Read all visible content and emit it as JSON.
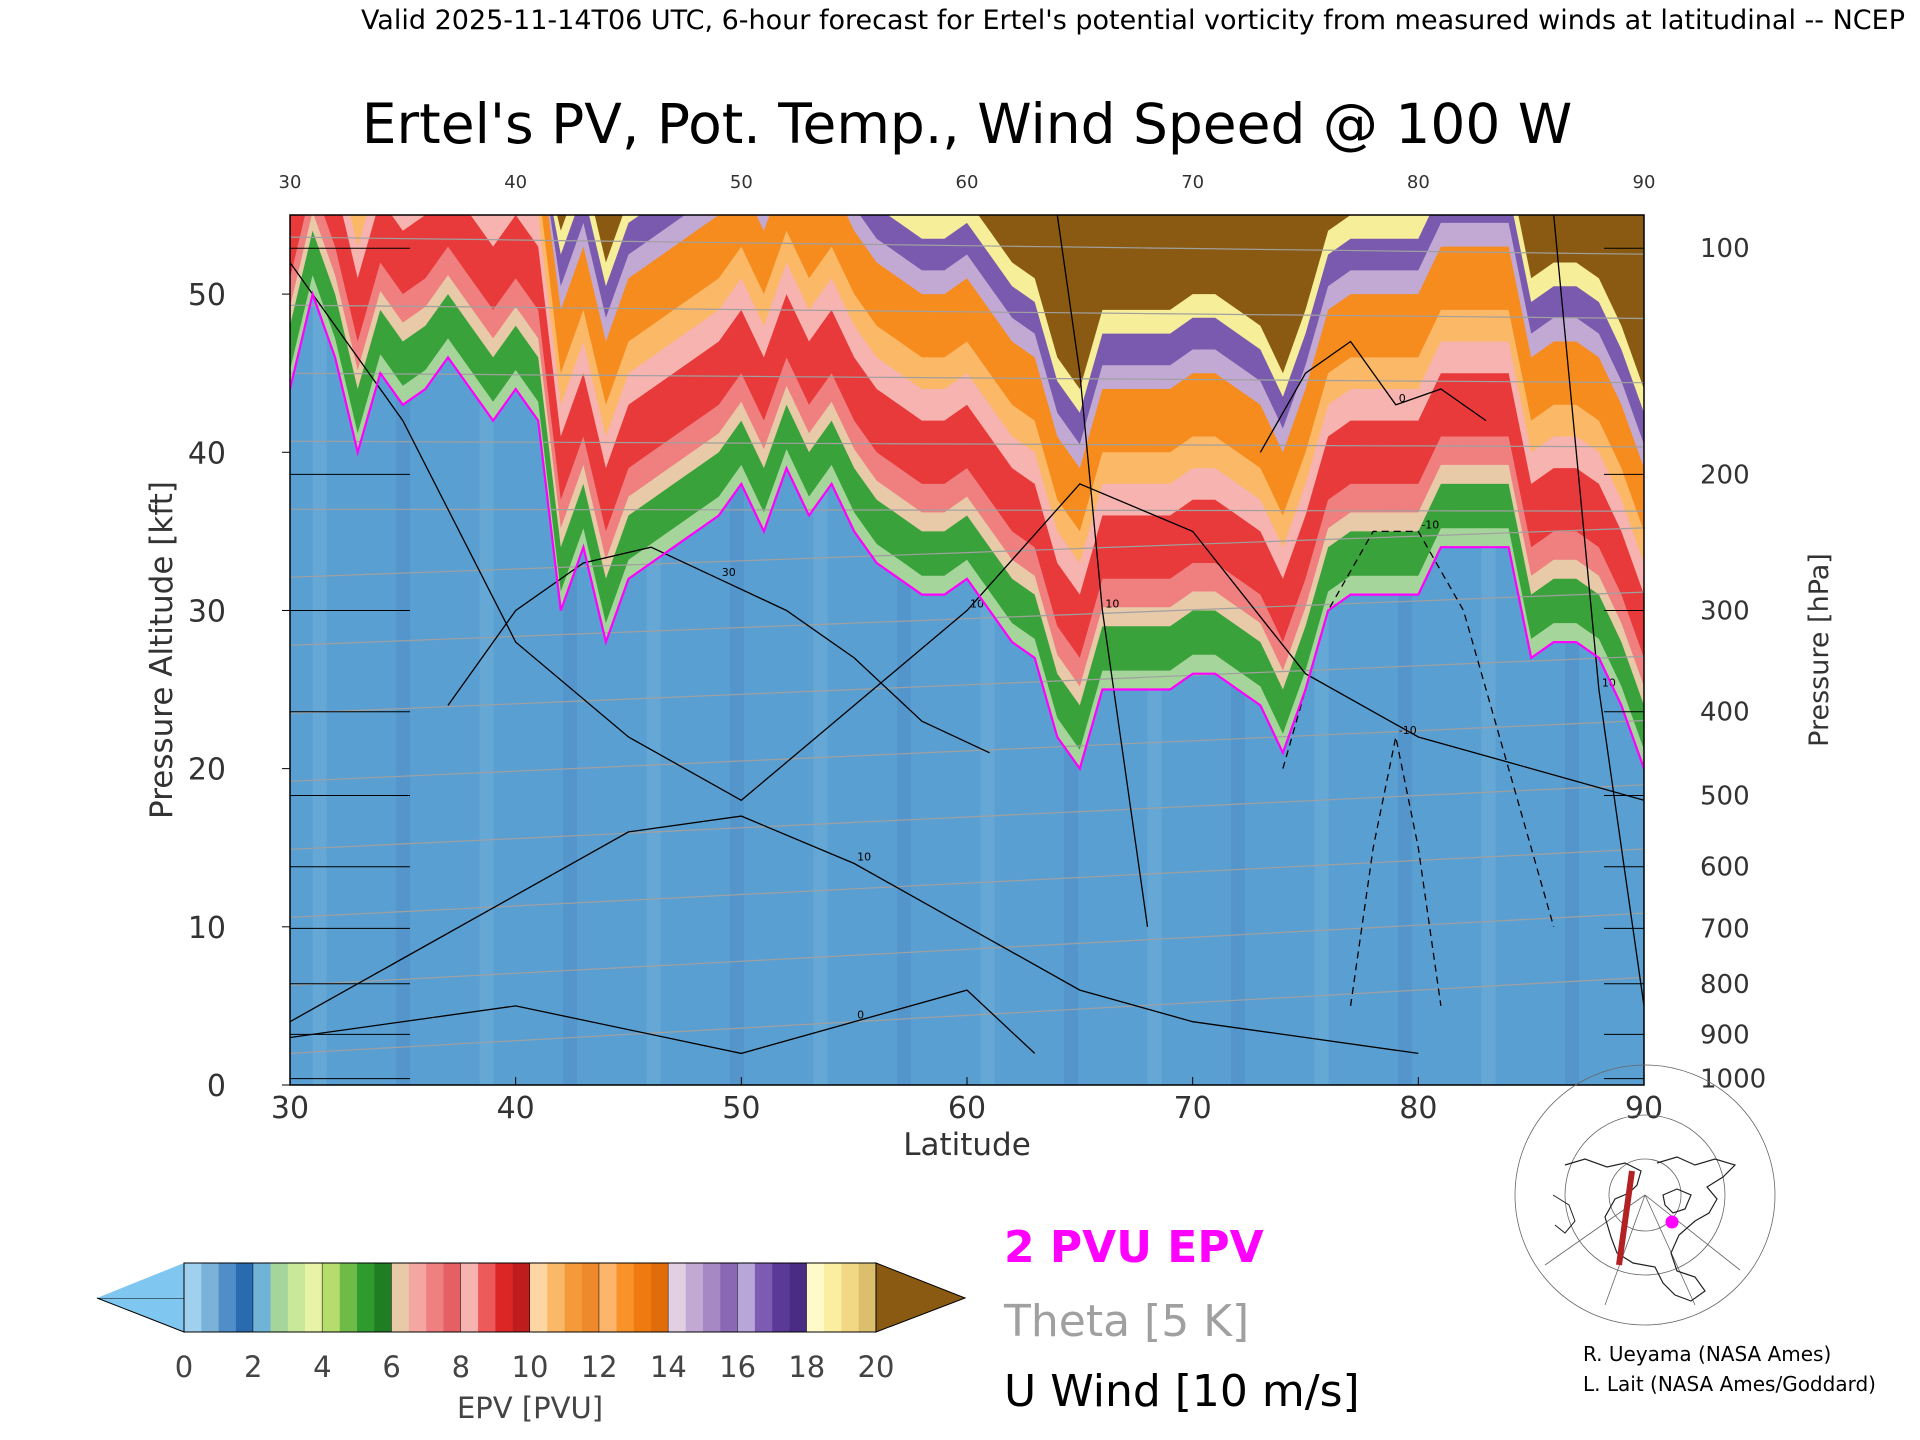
{
  "header": {
    "valid_line": "Valid 2025-11-14T06 UTC, 6-hour forecast for Ertel's potential vorticity from measured winds at latitudinal -- NCEP"
  },
  "chart_data": {
    "type": "heatmap",
    "title": "Ertel's PV, Pot. Temp., Wind Speed @ 100 W",
    "xlabel": "Latitude",
    "ylabel": "Pressure Altitude [kft]",
    "ylabel_right": "Pressure [hPa]",
    "xlim": [
      30,
      90
    ],
    "ylim": [
      0,
      55
    ],
    "x_ticks": [
      30,
      40,
      50,
      60,
      70,
      80,
      90
    ],
    "x_tick_labels": [
      "30",
      "40",
      "50",
      "60",
      "70",
      "80",
      "90"
    ],
    "x_top_tick_labels": [
      "30",
      "40",
      "50",
      "60",
      "70",
      "80",
      "90"
    ],
    "y_ticks": [
      0,
      10,
      20,
      30,
      40,
      50
    ],
    "y_tick_labels": [
      "0",
      "10",
      "20",
      "30",
      "40",
      "50"
    ],
    "pressure_ticks": [
      {
        "label": "100",
        "kft": 52.9
      },
      {
        "label": "200",
        "kft": 38.6
      },
      {
        "label": "300",
        "kft": 30.0
      },
      {
        "label": "400",
        "kft": 23.6
      },
      {
        "label": "500",
        "kft": 18.3
      },
      {
        "label": "600",
        "kft": 13.8
      },
      {
        "label": "700",
        "kft": 9.9
      },
      {
        "label": "800",
        "kft": 6.4
      },
      {
        "label": "900",
        "kft": 3.2
      },
      {
        "label": "1000",
        "kft": 0.4
      }
    ],
    "pv2_boundary": {
      "name": "2 PVU EPV",
      "lat": [
        30,
        31,
        32,
        33,
        34,
        35,
        36,
        37,
        38,
        39,
        40,
        41,
        42,
        43,
        44,
        45,
        46,
        47,
        48,
        49,
        50,
        51,
        52,
        53,
        54,
        55,
        56,
        57,
        58,
        59,
        60,
        61,
        62,
        63,
        64,
        65,
        66,
        67,
        68,
        69,
        70,
        71,
        72,
        73,
        74,
        75,
        76,
        77,
        78,
        79,
        80,
        81,
        82,
        83,
        84,
        85,
        86,
        87,
        88,
        89,
        90
      ],
      "kft": [
        44,
        50,
        46,
        40,
        45,
        43,
        44,
        46,
        44,
        42,
        44,
        42,
        30,
        34,
        28,
        32,
        33,
        34,
        35,
        36,
        38,
        35,
        39,
        36,
        38,
        35,
        33,
        32,
        31,
        31,
        32,
        30,
        28,
        27,
        22,
        20,
        25,
        25,
        25,
        25,
        26,
        26,
        25,
        24,
        21,
        25,
        30,
        31,
        31,
        31,
        31,
        34,
        34,
        34,
        34,
        27,
        28,
        28,
        27,
        24,
        20
      ]
    },
    "theta_levels_K": [
      270,
      280,
      290,
      300,
      310,
      320,
      330,
      340,
      350,
      360,
      370,
      380,
      390,
      400
    ],
    "u_wind_contours": [
      {
        "label": "10",
        "lat": [
          30,
          35,
          40,
          45,
          50,
          55,
          60,
          65,
          70,
          75,
          80,
          85,
          90
        ],
        "kft": [
          52,
          42,
          28,
          22,
          18,
          24,
          30,
          38,
          35,
          26,
          22,
          20,
          18
        ]
      },
      {
        "label": "30",
        "lat": [
          37,
          40,
          43,
          46,
          49,
          52,
          55,
          58,
          61
        ],
        "kft": [
          24,
          30,
          33,
          34,
          32,
          30,
          27,
          23,
          21
        ]
      },
      {
        "label": "10",
        "lat": [
          30,
          35,
          40,
          45,
          50,
          55,
          60,
          65,
          70,
          75,
          80
        ],
        "kft": [
          4,
          8,
          12,
          16,
          17,
          14,
          10,
          6,
          4,
          3,
          2
        ]
      },
      {
        "label": "0",
        "lat": [
          30,
          40,
          50,
          55,
          60,
          63
        ],
        "kft": [
          3,
          5,
          2,
          4,
          6,
          2
        ]
      },
      {
        "label": "0",
        "lat": [
          73,
          75,
          77,
          79,
          81,
          83
        ],
        "kft": [
          40,
          45,
          47,
          43,
          44,
          42
        ]
      },
      {
        "label": "10",
        "lat": [
          64,
          65,
          66,
          67,
          68
        ],
        "kft": [
          55,
          45,
          30,
          20,
          10
        ]
      },
      {
        "label": "10",
        "lat": [
          86,
          87,
          88,
          89,
          90
        ],
        "kft": [
          55,
          40,
          25,
          15,
          5
        ]
      }
    ],
    "u_wind_negative_contours": [
      {
        "label": "-10",
        "lat": [
          74,
          76,
          78,
          80,
          82,
          84,
          86
        ],
        "kft": [
          20,
          30,
          35,
          35,
          30,
          20,
          10
        ]
      },
      {
        "label": "-10",
        "lat": [
          77,
          78,
          79,
          80,
          81
        ],
        "kft": [
          5,
          15,
          22,
          15,
          5
        ]
      }
    ],
    "colorbar": {
      "label": "EPV [PVU]",
      "tick_labels": [
        "0",
        "2",
        "4",
        "6",
        "8",
        "10",
        "12",
        "14",
        "16",
        "18",
        "20"
      ],
      "segments": [
        {
          "range": [
            0,
            2
          ],
          "colors": [
            "#9fd0ee",
            "#7ab2da",
            "#4f8ec9",
            "#2a6aae"
          ]
        },
        {
          "range": [
            2,
            4
          ],
          "colors": [
            "#6fb3d6",
            "#a6d59b",
            "#c9e89a",
            "#e9f3a8"
          ]
        },
        {
          "range": [
            4,
            6
          ],
          "colors": [
            "#b6dd6c",
            "#6fbb47",
            "#2f9b2f",
            "#1f7d22"
          ]
        },
        {
          "range": [
            6,
            8
          ],
          "colors": [
            "#e8c9a8",
            "#f4a6a0",
            "#f07f80",
            "#e56064"
          ]
        },
        {
          "range": [
            8,
            10
          ],
          "colors": [
            "#f6b3b0",
            "#ee5a5a",
            "#dc2626",
            "#bf1d1d"
          ]
        },
        {
          "range": [
            10,
            12
          ],
          "colors": [
            "#fdd6a3",
            "#fbb866",
            "#f59a3a",
            "#ee8a2b"
          ]
        },
        {
          "range": [
            12,
            14
          ],
          "colors": [
            "#fcb56b",
            "#f99229",
            "#ef7b10",
            "#e06d0a"
          ]
        },
        {
          "range": [
            14,
            16
          ],
          "colors": [
            "#e3cfe2",
            "#c1a9d3",
            "#a588c4",
            "#8a68b3"
          ]
        },
        {
          "range": [
            16,
            18
          ],
          "colors": [
            "#b9a6d8",
            "#7c5cb3",
            "#5b3a97",
            "#4a2c85"
          ]
        },
        {
          "range": [
            18,
            20
          ],
          "colors": [
            "#fffaca",
            "#fbeea0",
            "#f0d884",
            "#dcbf6c"
          ]
        }
      ],
      "low_extension_color": "#7fc6f0",
      "high_extension_color": "#8a5a12"
    },
    "legend": [
      {
        "text": "2 PVU EPV",
        "color": "#ff00ff"
      },
      {
        "text": "Theta [5 K]",
        "color": "#a0a0a0"
      },
      {
        "text": "U Wind [10 m/s]",
        "color": "#000000"
      }
    ],
    "credits": [
      "R. Ueyama (NASA Ames)",
      "L. Lait (NASA Ames/Goddard)"
    ],
    "colors": {
      "pv_low": "#5a9fd2",
      "pv_mid_green": "#3aa23a",
      "pv_red": "#e83a3a",
      "pv_orange": "#f78c1e",
      "pv_purple": "#7a5aae",
      "pv_yellow": "#f7ee9a",
      "pv_brown": "#8a5a12",
      "pv2_line": "#ff00ff",
      "theta_line": "#a0a0a0",
      "u_wind_line": "#000000",
      "track_line": "#b22222",
      "location_dot": "#ff00ff"
    }
  }
}
